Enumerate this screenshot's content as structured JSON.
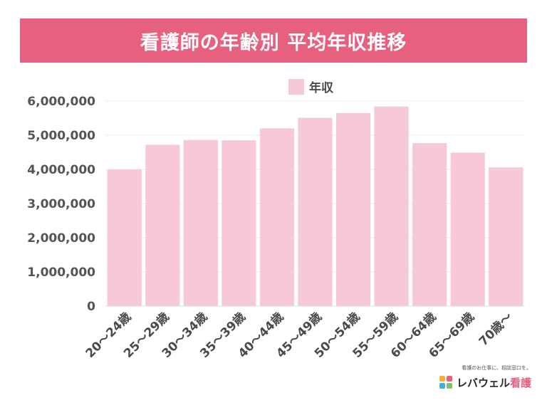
{
  "title": "看護師の年齢別 平均年収推移",
  "brand": {
    "tagline": "看護のお仕事に、相談窓口を。",
    "name_main": "レバウェル",
    "name_accent": "看護"
  },
  "colors": {
    "banner": "#e8607f",
    "bar": "#f7c9d6",
    "tick_text": "#555555",
    "axis_text": "#4a4a4a"
  },
  "chart_data": {
    "type": "bar",
    "categories": [
      "20〜24歳",
      "25〜29歳",
      "30〜34歳",
      "35〜39歳",
      "40〜44歳",
      "45〜49歳",
      "50〜54歳",
      "55〜59歳",
      "60〜64歳",
      "65〜69歳",
      "70歳〜"
    ],
    "series": [
      {
        "name": "年収",
        "values": [
          4000000,
          4720000,
          4860000,
          4850000,
          5200000,
          5510000,
          5650000,
          5840000,
          4770000,
          4490000,
          4060000
        ]
      }
    ],
    "yticks": [
      "0",
      "1,000,000",
      "2,000,000",
      "3,000,000",
      "4,000,000",
      "5,000,000",
      "6,000,000"
    ],
    "ylim": [
      0,
      6000000
    ],
    "grid": true,
    "legend_position": "top-center"
  }
}
